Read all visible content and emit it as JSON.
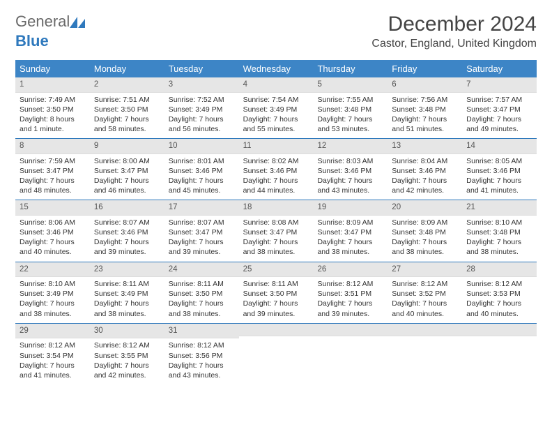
{
  "brand": {
    "general": "General",
    "blue": "Blue"
  },
  "colors": {
    "header_bg": "#3d85c6",
    "header_text": "#ffffff",
    "daynum_bg": "#e6e6e6",
    "week_divider": "#2f79bd",
    "logo_gray": "#6a6a6a",
    "logo_blue": "#2f79bd",
    "body_text": "#333333",
    "page_bg": "#ffffff"
  },
  "title": "December 2024",
  "location": "Castor, England, United Kingdom",
  "day_headers": [
    "Sunday",
    "Monday",
    "Tuesday",
    "Wednesday",
    "Thursday",
    "Friday",
    "Saturday"
  ],
  "weeks": [
    [
      {
        "num": "1",
        "sunrise": "Sunrise: 7:49 AM",
        "sunset": "Sunset: 3:50 PM",
        "daylight": "Daylight: 8 hours and 1 minute."
      },
      {
        "num": "2",
        "sunrise": "Sunrise: 7:51 AM",
        "sunset": "Sunset: 3:50 PM",
        "daylight": "Daylight: 7 hours and 58 minutes."
      },
      {
        "num": "3",
        "sunrise": "Sunrise: 7:52 AM",
        "sunset": "Sunset: 3:49 PM",
        "daylight": "Daylight: 7 hours and 56 minutes."
      },
      {
        "num": "4",
        "sunrise": "Sunrise: 7:54 AM",
        "sunset": "Sunset: 3:49 PM",
        "daylight": "Daylight: 7 hours and 55 minutes."
      },
      {
        "num": "5",
        "sunrise": "Sunrise: 7:55 AM",
        "sunset": "Sunset: 3:48 PM",
        "daylight": "Daylight: 7 hours and 53 minutes."
      },
      {
        "num": "6",
        "sunrise": "Sunrise: 7:56 AM",
        "sunset": "Sunset: 3:48 PM",
        "daylight": "Daylight: 7 hours and 51 minutes."
      },
      {
        "num": "7",
        "sunrise": "Sunrise: 7:57 AM",
        "sunset": "Sunset: 3:47 PM",
        "daylight": "Daylight: 7 hours and 49 minutes."
      }
    ],
    [
      {
        "num": "8",
        "sunrise": "Sunrise: 7:59 AM",
        "sunset": "Sunset: 3:47 PM",
        "daylight": "Daylight: 7 hours and 48 minutes."
      },
      {
        "num": "9",
        "sunrise": "Sunrise: 8:00 AM",
        "sunset": "Sunset: 3:47 PM",
        "daylight": "Daylight: 7 hours and 46 minutes."
      },
      {
        "num": "10",
        "sunrise": "Sunrise: 8:01 AM",
        "sunset": "Sunset: 3:46 PM",
        "daylight": "Daylight: 7 hours and 45 minutes."
      },
      {
        "num": "11",
        "sunrise": "Sunrise: 8:02 AM",
        "sunset": "Sunset: 3:46 PM",
        "daylight": "Daylight: 7 hours and 44 minutes."
      },
      {
        "num": "12",
        "sunrise": "Sunrise: 8:03 AM",
        "sunset": "Sunset: 3:46 PM",
        "daylight": "Daylight: 7 hours and 43 minutes."
      },
      {
        "num": "13",
        "sunrise": "Sunrise: 8:04 AM",
        "sunset": "Sunset: 3:46 PM",
        "daylight": "Daylight: 7 hours and 42 minutes."
      },
      {
        "num": "14",
        "sunrise": "Sunrise: 8:05 AM",
        "sunset": "Sunset: 3:46 PM",
        "daylight": "Daylight: 7 hours and 41 minutes."
      }
    ],
    [
      {
        "num": "15",
        "sunrise": "Sunrise: 8:06 AM",
        "sunset": "Sunset: 3:46 PM",
        "daylight": "Daylight: 7 hours and 40 minutes."
      },
      {
        "num": "16",
        "sunrise": "Sunrise: 8:07 AM",
        "sunset": "Sunset: 3:46 PM",
        "daylight": "Daylight: 7 hours and 39 minutes."
      },
      {
        "num": "17",
        "sunrise": "Sunrise: 8:07 AM",
        "sunset": "Sunset: 3:47 PM",
        "daylight": "Daylight: 7 hours and 39 minutes."
      },
      {
        "num": "18",
        "sunrise": "Sunrise: 8:08 AM",
        "sunset": "Sunset: 3:47 PM",
        "daylight": "Daylight: 7 hours and 38 minutes."
      },
      {
        "num": "19",
        "sunrise": "Sunrise: 8:09 AM",
        "sunset": "Sunset: 3:47 PM",
        "daylight": "Daylight: 7 hours and 38 minutes."
      },
      {
        "num": "20",
        "sunrise": "Sunrise: 8:09 AM",
        "sunset": "Sunset: 3:48 PM",
        "daylight": "Daylight: 7 hours and 38 minutes."
      },
      {
        "num": "21",
        "sunrise": "Sunrise: 8:10 AM",
        "sunset": "Sunset: 3:48 PM",
        "daylight": "Daylight: 7 hours and 38 minutes."
      }
    ],
    [
      {
        "num": "22",
        "sunrise": "Sunrise: 8:10 AM",
        "sunset": "Sunset: 3:49 PM",
        "daylight": "Daylight: 7 hours and 38 minutes."
      },
      {
        "num": "23",
        "sunrise": "Sunrise: 8:11 AM",
        "sunset": "Sunset: 3:49 PM",
        "daylight": "Daylight: 7 hours and 38 minutes."
      },
      {
        "num": "24",
        "sunrise": "Sunrise: 8:11 AM",
        "sunset": "Sunset: 3:50 PM",
        "daylight": "Daylight: 7 hours and 38 minutes."
      },
      {
        "num": "25",
        "sunrise": "Sunrise: 8:11 AM",
        "sunset": "Sunset: 3:50 PM",
        "daylight": "Daylight: 7 hours and 39 minutes."
      },
      {
        "num": "26",
        "sunrise": "Sunrise: 8:12 AM",
        "sunset": "Sunset: 3:51 PM",
        "daylight": "Daylight: 7 hours and 39 minutes."
      },
      {
        "num": "27",
        "sunrise": "Sunrise: 8:12 AM",
        "sunset": "Sunset: 3:52 PM",
        "daylight": "Daylight: 7 hours and 40 minutes."
      },
      {
        "num": "28",
        "sunrise": "Sunrise: 8:12 AM",
        "sunset": "Sunset: 3:53 PM",
        "daylight": "Daylight: 7 hours and 40 minutes."
      }
    ],
    [
      {
        "num": "29",
        "sunrise": "Sunrise: 8:12 AM",
        "sunset": "Sunset: 3:54 PM",
        "daylight": "Daylight: 7 hours and 41 minutes."
      },
      {
        "num": "30",
        "sunrise": "Sunrise: 8:12 AM",
        "sunset": "Sunset: 3:55 PM",
        "daylight": "Daylight: 7 hours and 42 minutes."
      },
      {
        "num": "31",
        "sunrise": "Sunrise: 8:12 AM",
        "sunset": "Sunset: 3:56 PM",
        "daylight": "Daylight: 7 hours and 43 minutes."
      },
      {
        "empty": true
      },
      {
        "empty": true
      },
      {
        "empty": true
      },
      {
        "empty": true
      }
    ]
  ]
}
